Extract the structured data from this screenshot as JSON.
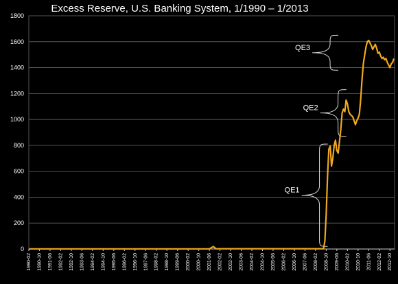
{
  "chart_data": {
    "type": "line",
    "title": "Excess Reserve, U.S. Banking System, 1/1990 – 1/2013",
    "xlabel": "",
    "ylabel": "",
    "ylim": [
      0,
      1800
    ],
    "yticks": [
      0,
      200,
      400,
      600,
      800,
      1000,
      1200,
      1400,
      1600,
      1800
    ],
    "grid": true,
    "legend": "none",
    "line_color": "#f0a81e",
    "x_tick_labels": [
      "1990-02",
      "1990-10",
      "1991-06",
      "1992-02",
      "1992-10",
      "1993-06",
      "1994-02",
      "1994-10",
      "1995-06",
      "1996-02",
      "1996-10",
      "1997-06",
      "1998-02",
      "1998-10",
      "1999-06",
      "2000-02",
      "2000-10",
      "2001-06",
      "2002-02",
      "2002-10",
      "2003-06",
      "2004-02",
      "2004-10",
      "2005-06",
      "2006-02",
      "2006-10",
      "2007-06",
      "2008-02",
      "2008-10",
      "2009-06",
      "2010-02",
      "2010-10",
      "2011-06",
      "2012-02",
      "2012-10"
    ],
    "series": [
      {
        "points": [
          [
            "1990-02",
            1
          ],
          [
            "2001-06",
            1
          ],
          [
            "2001-09",
            19
          ],
          [
            "2001-11",
            2
          ],
          [
            "2008-08",
            2
          ],
          [
            "2008-09",
            60
          ],
          [
            "2008-10",
            270
          ],
          [
            "2008-11",
            560
          ],
          [
            "2008-12",
            770
          ],
          [
            "2009-01",
            795
          ],
          [
            "2009-02",
            640
          ],
          [
            "2009-03",
            700
          ],
          [
            "2009-04",
            800
          ],
          [
            "2009-05",
            840
          ],
          [
            "2009-06",
            760
          ],
          [
            "2009-07",
            740
          ],
          [
            "2009-08",
            830
          ],
          [
            "2009-09",
            920
          ],
          [
            "2009-10",
            1050
          ],
          [
            "2009-11",
            1080
          ],
          [
            "2009-12",
            1060
          ],
          [
            "2010-01",
            1150
          ],
          [
            "2010-02",
            1120
          ],
          [
            "2010-03",
            1060
          ],
          [
            "2010-04",
            1040
          ],
          [
            "2010-05",
            1030
          ],
          [
            "2010-06",
            1020
          ],
          [
            "2010-07",
            990
          ],
          [
            "2010-08",
            960
          ],
          [
            "2010-09",
            990
          ],
          [
            "2010-10",
            1010
          ],
          [
            "2010-11",
            1040
          ],
          [
            "2010-12",
            1160
          ],
          [
            "2011-01",
            1310
          ],
          [
            "2011-02",
            1430
          ],
          [
            "2011-03",
            1500
          ],
          [
            "2011-04",
            1560
          ],
          [
            "2011-05",
            1600
          ],
          [
            "2011-06",
            1610
          ],
          [
            "2011-07",
            1590
          ],
          [
            "2011-08",
            1570
          ],
          [
            "2011-09",
            1540
          ],
          [
            "2011-10",
            1560
          ],
          [
            "2011-11",
            1580
          ],
          [
            "2011-12",
            1550
          ],
          [
            "2012-01",
            1510
          ],
          [
            "2012-02",
            1520
          ],
          [
            "2012-03",
            1490
          ],
          [
            "2012-04",
            1470
          ],
          [
            "2012-05",
            1480
          ],
          [
            "2012-06",
            1460
          ],
          [
            "2012-07",
            1470
          ],
          [
            "2012-08",
            1440
          ],
          [
            "2012-09",
            1420
          ],
          [
            "2012-10",
            1400
          ],
          [
            "2012-11",
            1430
          ],
          [
            "2012-12",
            1440
          ],
          [
            "2013-01",
            1470
          ]
        ]
      }
    ],
    "annotations": [
      {
        "label": "QE1",
        "y_from": 20,
        "y_to": 810,
        "date": "2008-07"
      },
      {
        "label": "QE2",
        "y_from": 870,
        "y_to": 1230,
        "date": "2009-09"
      },
      {
        "label": "QE3",
        "y_from": 1380,
        "y_to": 1650,
        "date": "2009-03"
      }
    ]
  }
}
